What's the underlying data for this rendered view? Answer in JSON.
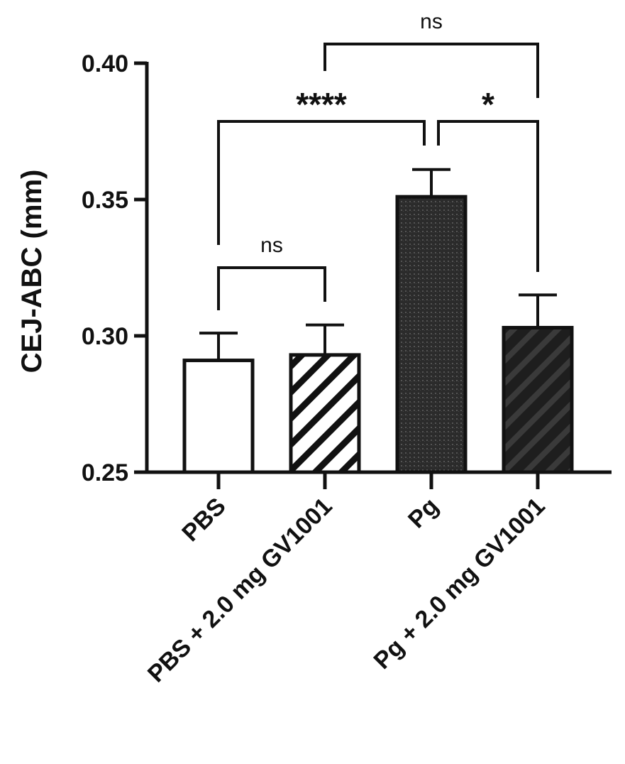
{
  "chart_data": {
    "type": "bar",
    "ylabel": "CEJ-ABC (mm)",
    "xlabel": "",
    "ylim": [
      0.25,
      0.4
    ],
    "yticks": [
      "0.25",
      "0.30",
      "0.35",
      "0.40"
    ],
    "categories": [
      "PBS",
      "PBS + 2.0 mg GV1001",
      "Pg",
      "Pg + 2.0 mg GV1001"
    ],
    "values": [
      0.291,
      0.293,
      0.351,
      0.303
    ],
    "errors": [
      0.01,
      0.011,
      0.01,
      0.012
    ],
    "bar_styles": [
      "open",
      "hatched",
      "dark-stipple",
      "dark-hatched"
    ],
    "significance": [
      {
        "from": 0,
        "to": 1,
        "label": "ns",
        "level": 1
      },
      {
        "from": 0,
        "to": 2,
        "label": "****",
        "level": 2
      },
      {
        "from": 2,
        "to": 3,
        "label": "*",
        "level": 2
      },
      {
        "from": 1,
        "to": 3,
        "label": "ns",
        "level": 3
      }
    ],
    "grid": false,
    "colors": {
      "axis": "#111111",
      "dark_fill": "#2b2b2b",
      "open_fill": "#ffffff"
    }
  }
}
